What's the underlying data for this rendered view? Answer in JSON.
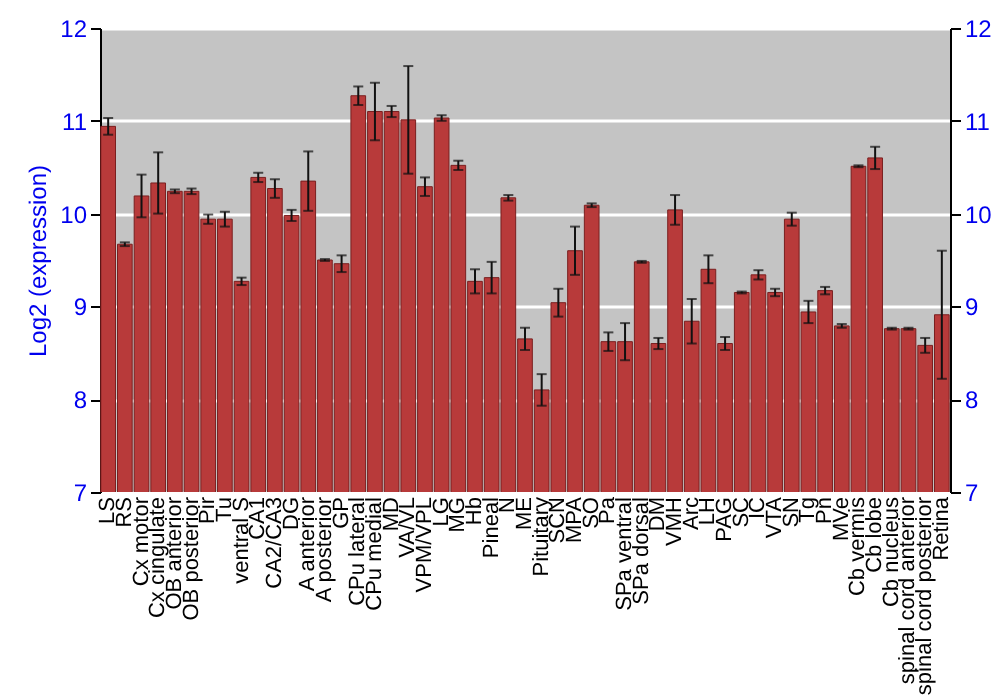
{
  "chart_data": {
    "type": "bar",
    "ylabel": "Log2 (expression)",
    "categories": [
      "LS",
      "RS",
      "Cx motor",
      "Cx cingulate",
      "OB anterior",
      "OB posterior",
      "Pir",
      "Tu",
      "ventral S",
      "CA1",
      "CA2/CA3",
      "DG",
      "A anterior",
      "A posterior",
      "GP",
      "CPu lateral",
      "CPu medial",
      "MD",
      "VA/VL",
      "VPM/VPL",
      "LG",
      "MG",
      "Hb",
      "Pineal",
      "N",
      "ME",
      "Pituitary",
      "SCN",
      "MPA",
      "SO",
      "Pa",
      "SPa ventral",
      "SPa dorsal",
      "DM",
      "VMH",
      "Arc",
      "LH",
      "PAG",
      "SC",
      "IC",
      "VTA",
      "SN",
      "Tg",
      "Pn",
      "MVe",
      "Cb vermis",
      "Cb lobe",
      "Cb nucleus",
      "spinal cord anterior",
      "spinal cord posterior",
      "Retina"
    ],
    "series": [
      {
        "color": "#b83a3a",
        "values": [
          10.94,
          9.67,
          10.19,
          10.33,
          10.24,
          10.24,
          9.94,
          9.94,
          9.27,
          10.39,
          10.27,
          9.98,
          10.35,
          9.5,
          9.46,
          11.27,
          11.1,
          11.1,
          11.01,
          10.29,
          11.03,
          10.52,
          9.27,
          9.31,
          10.17,
          8.65,
          8.1,
          9.04,
          9.6,
          10.09,
          8.62,
          8.62,
          9.48,
          8.6,
          10.04,
          8.84,
          9.4,
          8.6,
          9.15,
          9.34,
          9.15,
          9.94,
          8.94,
          9.17,
          8.79,
          10.51,
          10.6,
          8.76,
          8.76,
          8.58,
          8.91
        ],
        "errors": [
          0.09,
          0.02,
          0.23,
          0.33,
          0.02,
          0.03,
          0.05,
          0.08,
          0.04,
          0.05,
          0.1,
          0.06,
          0.32,
          0.01,
          0.09,
          0.1,
          0.31,
          0.06,
          0.58,
          0.1,
          0.03,
          0.05,
          0.13,
          0.17,
          0.03,
          0.12,
          0.17,
          0.15,
          0.26,
          0.02,
          0.1,
          0.2,
          0.01,
          0.06,
          0.16,
          0.24,
          0.15,
          0.07,
          0.01,
          0.05,
          0.04,
          0.07,
          0.12,
          0.04,
          0.02,
          0.01,
          0.12,
          0.01,
          0.01,
          0.08,
          0.69
        ]
      }
    ],
    "ylim": [
      7,
      12
    ],
    "yticks": [
      7,
      8,
      9,
      10,
      11,
      12
    ],
    "y2lim": [
      7,
      12
    ],
    "y2ticks": [
      7,
      8,
      9,
      10,
      11,
      12
    ],
    "grid": "y"
  }
}
